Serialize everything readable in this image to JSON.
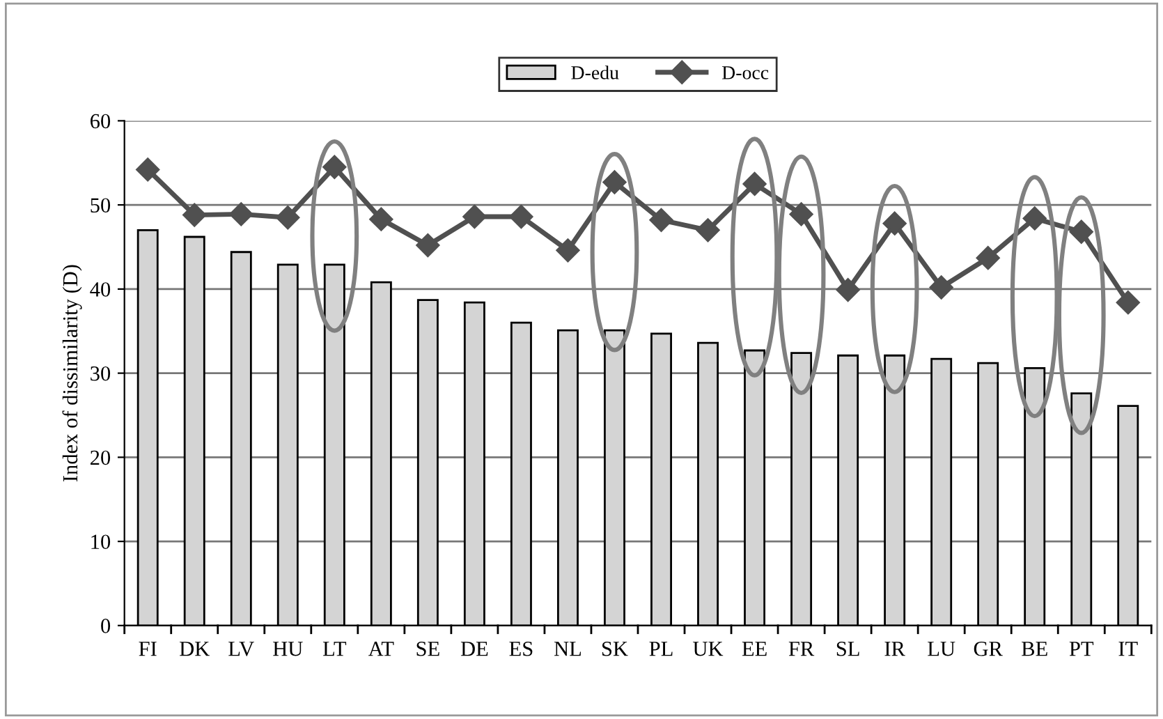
{
  "chart_data": {
    "type": "bar",
    "ylabel": "Index of dissimilarity (D)",
    "categories": [
      "FI",
      "DK",
      "LV",
      "HU",
      "LT",
      "AT",
      "SE",
      "DE",
      "ES",
      "NL",
      "SK",
      "PL",
      "UK",
      "EE",
      "FR",
      "SL",
      "IR",
      "LU",
      "GR",
      "BE",
      "PT",
      "IT"
    ],
    "series": [
      {
        "name": "D-edu",
        "color": "#d4d4d4",
        "values": [
          47.0,
          46.2,
          44.4,
          42.9,
          42.9,
          40.8,
          38.7,
          38.4,
          36.0,
          35.1,
          35.1,
          34.7,
          33.6,
          32.7,
          32.4,
          32.1,
          32.1,
          31.7,
          31.2,
          30.6,
          27.6,
          26.1
        ]
      },
      {
        "name": "D-occ",
        "type": "line",
        "color": "#505050",
        "marker": "diamond",
        "values": [
          54.2,
          48.8,
          48.9,
          48.5,
          54.5,
          48.3,
          45.2,
          48.6,
          48.6,
          44.6,
          52.7,
          48.2,
          47.0,
          52.5,
          48.9,
          39.9,
          47.8,
          40.2,
          43.7,
          48.4,
          46.8,
          38.4
        ]
      }
    ],
    "ylim": [
      0,
      60
    ],
    "yticks": [
      0,
      10,
      20,
      30,
      40,
      50,
      60
    ],
    "grid": "y",
    "legend": "top"
  }
}
